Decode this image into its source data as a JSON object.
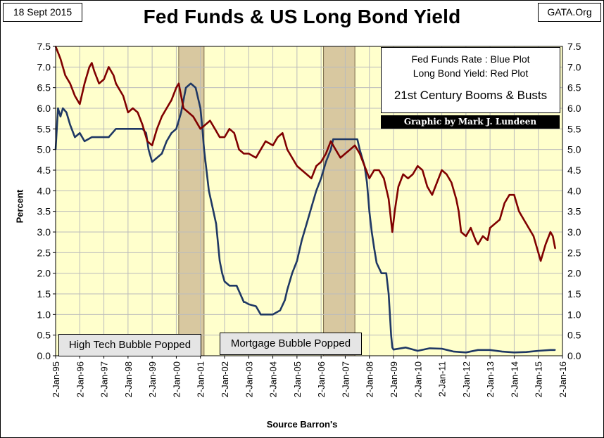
{
  "header": {
    "date": "18 Sept 2015",
    "site": "GATA.Org",
    "title": "Fed Funds & US Long Bond Yield"
  },
  "legend": {
    "line1": "Fed Funds Rate : Blue Plot",
    "line2": "Long Bond Yield: Red Plot",
    "line3": "21st Century Booms & Busts",
    "credit": "Graphic by Mark J. Lundeen"
  },
  "bubbles": {
    "tech": "High Tech Bubble Popped",
    "mortgage": "Mortgage Bubble Popped"
  },
  "colors": {
    "plot_bg": "#ffffcc",
    "fed_funds": "#1f3864",
    "long_bond": "#800000",
    "shade": "#d8c8a0"
  },
  "chart_data": {
    "type": "line",
    "title": "Fed Funds & US Long Bond Yield",
    "xlabel": "Source Barron's",
    "ylabel": "Percent",
    "xlim": [
      1995.0,
      2016.0
    ],
    "ylim": [
      0.0,
      7.5
    ],
    "x_tick_labels": [
      "2-Jan-95",
      "2-Jan-96",
      "2-Jan-97",
      "2-Jan-98",
      "2-Jan-99",
      "2-Jan-00",
      "2-Jan-01",
      "2-Jan-02",
      "2-Jan-03",
      "2-Jan-04",
      "2-Jan-05",
      "2-Jan-06",
      "2-Jan-07",
      "2-Jan-08",
      "2-Jan-09",
      "2-Jan-10",
      "2-Jan-11",
      "2-Jan-12",
      "2-Jan-13",
      "2-Jan-14",
      "2-Jan-15",
      "2-Jan-16"
    ],
    "y_tick_labels": [
      "0.0",
      "0.5",
      "1.0",
      "1.5",
      "2.0",
      "2.5",
      "3.0",
      "3.5",
      "4.0",
      "4.5",
      "5.0",
      "5.5",
      "6.0",
      "6.5",
      "7.0",
      "7.5"
    ],
    "shaded_periods": [
      {
        "name": "High Tech Bubble",
        "start": 2000.1,
        "end": 2001.15
      },
      {
        "name": "Mortgage Bubble",
        "start": 2006.1,
        "end": 2007.4
      }
    ],
    "series": [
      {
        "name": "Fed Funds Rate",
        "x": [
          1995.0,
          1995.1,
          1995.2,
          1995.3,
          1995.45,
          1995.6,
          1995.8,
          1996.0,
          1996.2,
          1996.5,
          1996.8,
          1997.0,
          1997.2,
          1997.5,
          1997.8,
          1998.0,
          1998.3,
          1998.6,
          1998.75,
          1998.85,
          1999.0,
          1999.2,
          1999.4,
          1999.6,
          1999.8,
          2000.0,
          2000.2,
          2000.4,
          2000.6,
          2000.8,
          2001.0,
          2001.08,
          2001.15,
          2001.25,
          2001.35,
          2001.5,
          2001.65,
          2001.8,
          2001.9,
          2002.0,
          2002.2,
          2002.5,
          2002.8,
          2002.85,
          2003.0,
          2003.3,
          2003.5,
          2003.6,
          2003.8,
          2004.0,
          2004.3,
          2004.5,
          2004.6,
          2004.8,
          2005.0,
          2005.2,
          2005.4,
          2005.6,
          2005.8,
          2006.0,
          2006.2,
          2006.4,
          2006.5,
          2006.8,
          2007.0,
          2007.3,
          2007.5,
          2007.6,
          2007.7,
          2007.8,
          2007.9,
          2008.0,
          2008.1,
          2008.2,
          2008.3,
          2008.5,
          2008.6,
          2008.7,
          2008.8,
          2008.9,
          2008.95,
          2009.0,
          2009.5,
          2010.0,
          2010.5,
          2011.0,
          2011.5,
          2012.0,
          2012.5,
          2013.0,
          2013.5,
          2014.0,
          2014.5,
          2015.0,
          2015.5,
          2015.7
        ],
        "values": [
          5.0,
          6.0,
          5.8,
          6.0,
          5.9,
          5.6,
          5.3,
          5.4,
          5.2,
          5.3,
          5.3,
          5.3,
          5.3,
          5.5,
          5.5,
          5.5,
          5.5,
          5.5,
          5.4,
          5.0,
          4.7,
          4.8,
          4.9,
          5.2,
          5.4,
          5.5,
          5.9,
          6.5,
          6.6,
          6.5,
          6.0,
          5.5,
          5.0,
          4.5,
          4.0,
          3.6,
          3.2,
          2.3,
          2.0,
          1.8,
          1.7,
          1.7,
          1.3,
          1.3,
          1.25,
          1.2,
          1.0,
          1.0,
          1.0,
          1.0,
          1.1,
          1.35,
          1.6,
          2.0,
          2.3,
          2.8,
          3.2,
          3.6,
          4.0,
          4.3,
          4.7,
          5.0,
          5.25,
          5.25,
          5.25,
          5.25,
          5.25,
          5.0,
          4.8,
          4.6,
          4.2,
          3.5,
          3.0,
          2.6,
          2.25,
          2.0,
          2.0,
          2.0,
          1.5,
          0.5,
          0.2,
          0.15,
          0.2,
          0.12,
          0.18,
          0.17,
          0.1,
          0.08,
          0.14,
          0.14,
          0.1,
          0.08,
          0.09,
          0.12,
          0.14,
          0.14
        ]
      },
      {
        "name": "Long Bond Yield",
        "x": [
          1995.0,
          1995.2,
          1995.4,
          1995.6,
          1995.8,
          1996.0,
          1996.2,
          1996.4,
          1996.5,
          1996.6,
          1996.8,
          1997.0,
          1997.2,
          1997.4,
          1997.5,
          1997.6,
          1997.8,
          1998.0,
          1998.2,
          1998.4,
          1998.6,
          1998.8,
          1999.0,
          1999.2,
          1999.4,
          1999.6,
          1999.8,
          2000.0,
          2000.1,
          2000.3,
          2000.5,
          2000.7,
          2001.0,
          2001.2,
          2001.4,
          2001.6,
          2001.8,
          2002.0,
          2002.2,
          2002.4,
          2002.6,
          2002.8,
          2003.0,
          2003.3,
          2003.5,
          2003.7,
          2004.0,
          2004.2,
          2004.4,
          2004.6,
          2004.8,
          2005.0,
          2005.2,
          2005.4,
          2005.6,
          2005.8,
          2006.0,
          2006.2,
          2006.4,
          2006.6,
          2006.8,
          2007.0,
          2007.2,
          2007.4,
          2007.6,
          2007.8,
          2008.0,
          2008.2,
          2008.4,
          2008.6,
          2008.8,
          2008.95,
          2009.05,
          2009.2,
          2009.4,
          2009.6,
          2009.8,
          2010.0,
          2010.2,
          2010.4,
          2010.6,
          2010.8,
          2011.0,
          2011.2,
          2011.4,
          2011.6,
          2011.7,
          2011.8,
          2012.0,
          2012.2,
          2012.4,
          2012.5,
          2012.7,
          2012.9,
          2013.0,
          2013.2,
          2013.4,
          2013.6,
          2013.8,
          2014.0,
          2014.2,
          2014.4,
          2014.6,
          2014.8,
          2015.0,
          2015.1,
          2015.3,
          2015.5,
          2015.6,
          2015.7
        ],
        "values": [
          7.5,
          7.2,
          6.8,
          6.6,
          6.3,
          6.1,
          6.6,
          7.0,
          7.1,
          6.9,
          6.6,
          6.7,
          7.0,
          6.8,
          6.6,
          6.5,
          6.3,
          5.9,
          6.0,
          5.9,
          5.6,
          5.2,
          5.1,
          5.5,
          5.8,
          6.0,
          6.2,
          6.5,
          6.6,
          6.0,
          5.9,
          5.8,
          5.5,
          5.6,
          5.7,
          5.5,
          5.3,
          5.3,
          5.5,
          5.4,
          5.0,
          4.9,
          4.9,
          4.8,
          5.0,
          5.2,
          5.1,
          5.3,
          5.4,
          5.0,
          4.8,
          4.6,
          4.5,
          4.4,
          4.3,
          4.6,
          4.7,
          4.9,
          5.2,
          5.0,
          4.8,
          4.9,
          5.0,
          5.1,
          4.9,
          4.6,
          4.3,
          4.5,
          4.5,
          4.3,
          3.8,
          3.0,
          3.5,
          4.1,
          4.4,
          4.3,
          4.4,
          4.6,
          4.5,
          4.1,
          3.9,
          4.2,
          4.5,
          4.4,
          4.2,
          3.8,
          3.5,
          3.0,
          2.9,
          3.1,
          2.8,
          2.7,
          2.9,
          2.8,
          3.1,
          3.2,
          3.3,
          3.7,
          3.9,
          3.9,
          3.5,
          3.3,
          3.1,
          2.9,
          2.5,
          2.3,
          2.7,
          3.0,
          2.9,
          2.6
        ]
      }
    ]
  }
}
